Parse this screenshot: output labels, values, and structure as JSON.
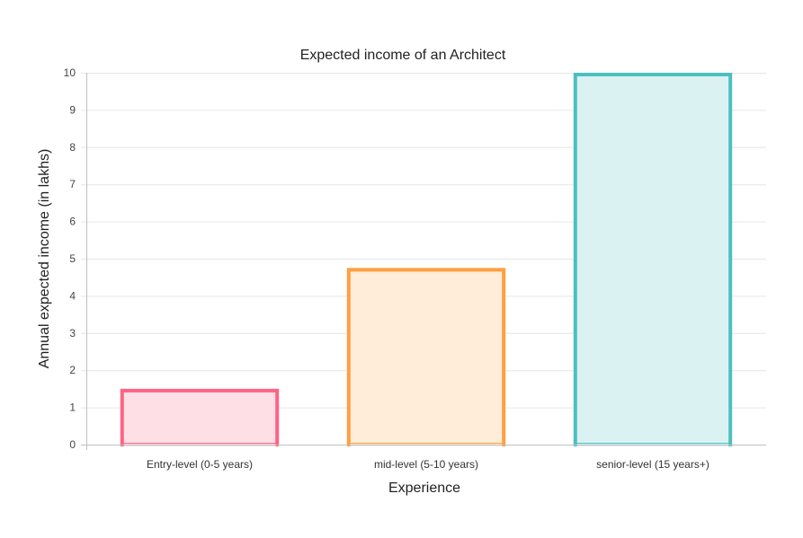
{
  "chart_data": {
    "type": "bar",
    "title": "Expected income of an  Architect",
    "xlabel": "Experience",
    "ylabel": "Annual expected income (in lakhs)",
    "categories": [
      "Entry-level (0-5 years)",
      "mid-level (5-10 years)",
      "senior-level (15 years+)"
    ],
    "values": [
      1.5,
      4.75,
      10
    ],
    "ylim": [
      0,
      10
    ],
    "yticks": [
      0,
      1,
      2,
      3,
      4,
      5,
      6,
      7,
      8,
      9,
      10
    ],
    "grid": true,
    "legend": "none",
    "colors": {
      "borders": [
        "#ff6384",
        "#ff9f40",
        "#4bc0c0"
      ],
      "fills": [
        "#ffdfe6",
        "#ffecd9",
        "#dbf2f2"
      ]
    }
  }
}
